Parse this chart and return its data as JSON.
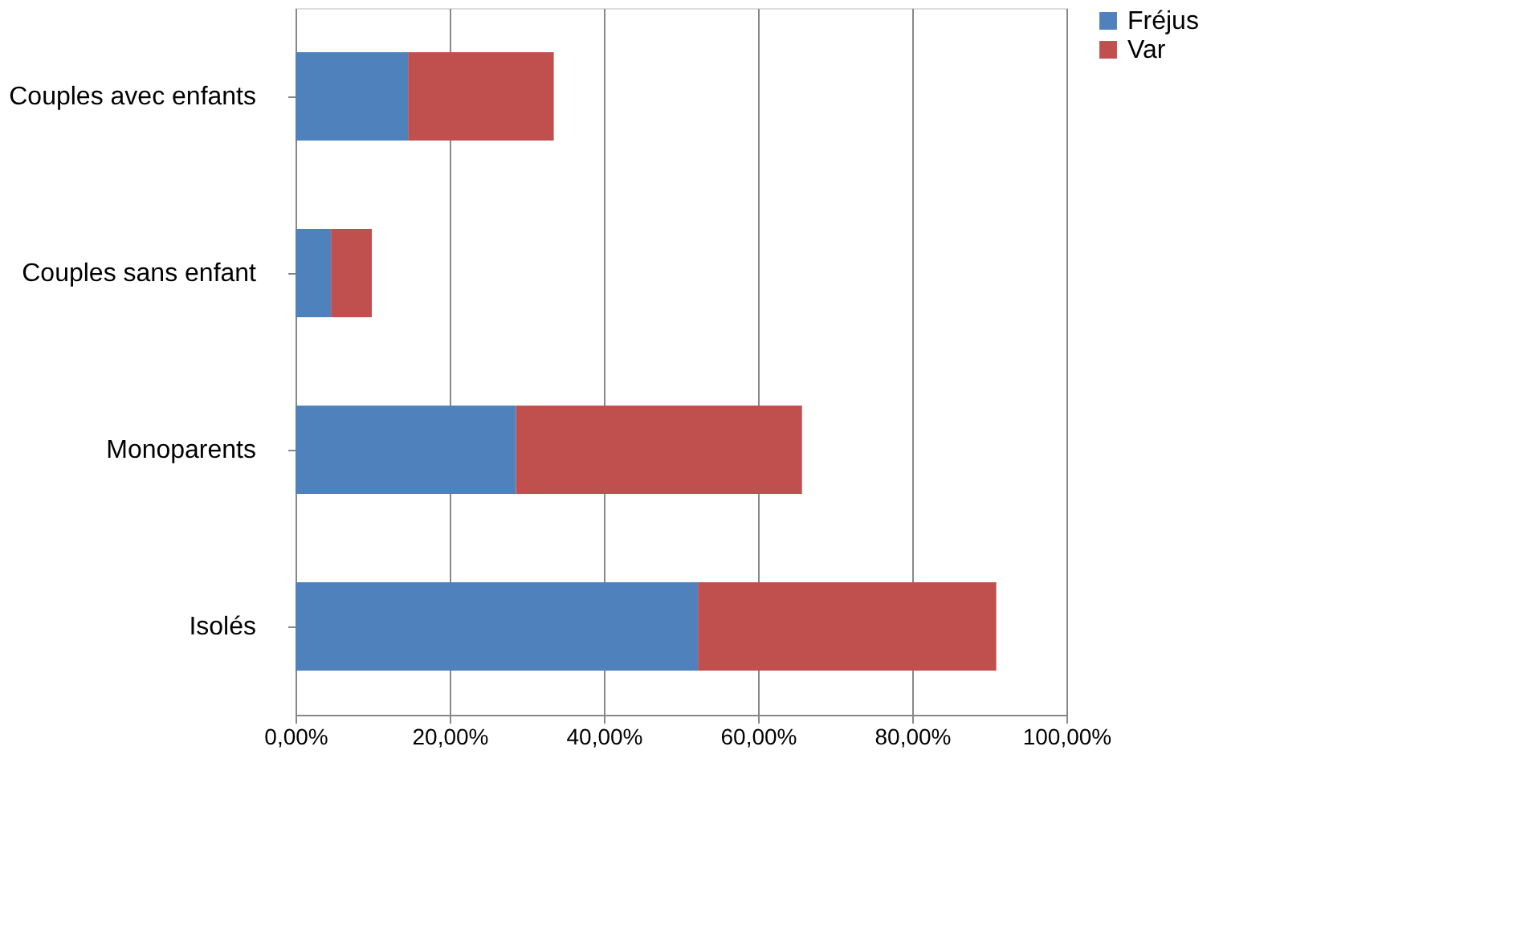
{
  "chart_data": {
    "type": "bar",
    "orientation": "horizontal",
    "stacked": true,
    "categories": [
      "Couples avec enfants",
      "Couples sans enfant",
      "Monoparents",
      "Isolés"
    ],
    "series": [
      {
        "name": "Fréjus",
        "color": "#4f81bd",
        "values": [
          14.6,
          4.6,
          28.6,
          52.2
        ]
      },
      {
        "name": "Var",
        "color": "#c0504d",
        "values": [
          18.9,
          5.3,
          37.1,
          38.7
        ]
      }
    ],
    "xlim": [
      0,
      100
    ],
    "xticks": [
      {
        "value": 0,
        "label": "0,00%"
      },
      {
        "value": 20,
        "label": "20,00%"
      },
      {
        "value": 40,
        "label": "40,00%"
      },
      {
        "value": 60,
        "label": "60,00%"
      },
      {
        "value": 80,
        "label": "80,00%"
      },
      {
        "value": 100,
        "label": "100,00%"
      }
    ],
    "grid": "x",
    "legend": "right"
  }
}
